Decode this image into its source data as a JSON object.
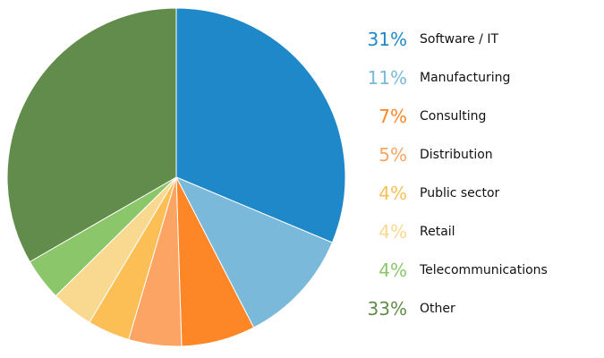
{
  "chart_data": {
    "type": "pie",
    "title": "",
    "slices": [
      {
        "label": "Software / IT",
        "value": 31,
        "display": "31%",
        "color": "#1f88c8"
      },
      {
        "label": "Manufacturing",
        "value": 11,
        "display": "11%",
        "color": "#7ab9da"
      },
      {
        "label": "Consulting",
        "value": 7,
        "display": "7%",
        "color": "#fd8627"
      },
      {
        "label": "Distribution",
        "value": 5,
        "display": "5%",
        "color": "#fba463"
      },
      {
        "label": "Public sector",
        "value": 4,
        "display": "4%",
        "color": "#fbbf56"
      },
      {
        "label": "Retail",
        "value": 4,
        "display": "4%",
        "color": "#f9d990"
      },
      {
        "label": "Telecommunications",
        "value": 4,
        "display": "4%",
        "color": "#8bc66a"
      },
      {
        "label": "Other",
        "value": 33,
        "display": "33%",
        "color": "#628c4b"
      }
    ],
    "legend_placement": "right"
  }
}
